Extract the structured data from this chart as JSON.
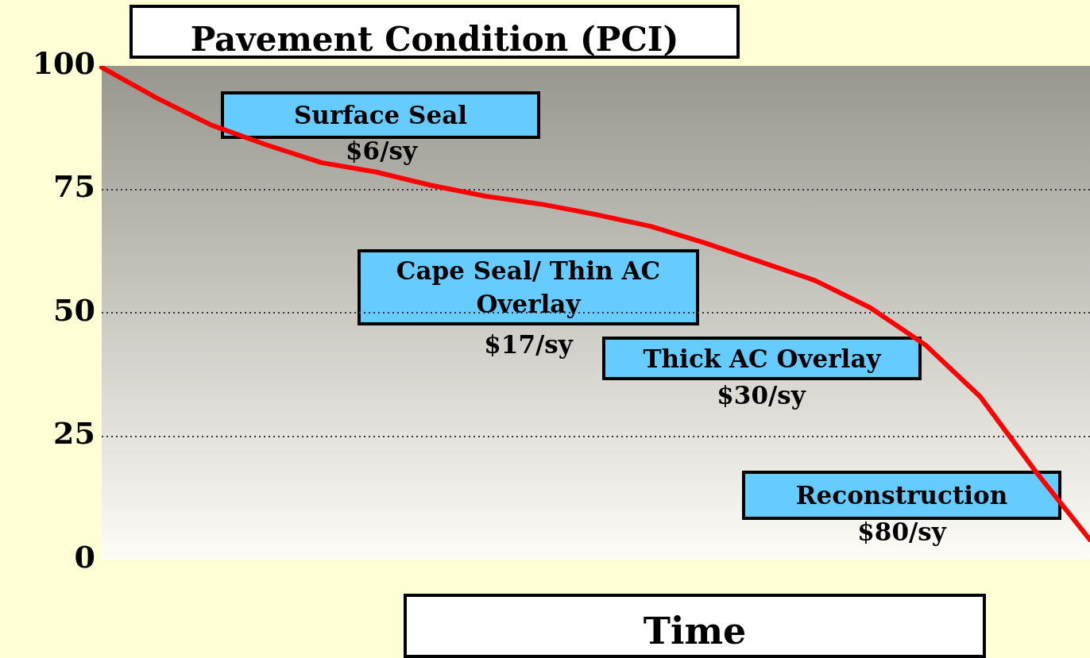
{
  "chart_data": {
    "type": "line",
    "title": "Pavement Condition (PCI)",
    "xlabel": "Time",
    "categories": [
      null,
      null,
      null,
      null,
      null,
      null,
      null,
      null,
      null,
      null,
      null,
      null,
      null,
      null,
      null,
      null,
      null,
      null,
      null
    ],
    "series": [
      {
        "color": "#ff0000",
        "values": [
          99.7,
          93.5,
          88,
          84,
          80.4,
          78.5,
          75.8,
          73.6,
          72,
          69.9,
          67.5,
          64.1,
          60.3,
          56.5,
          51,
          43.5,
          33,
          18,
          4
        ]
      }
    ],
    "ylim": [
      0,
      100
    ],
    "yticks": [
      0,
      25,
      50,
      75,
      100
    ],
    "grid": "y",
    "line_style": "solid",
    "marker": "none",
    "tick_labels": "y",
    "legend": false,
    "annotations": [
      "Surface Seal",
      "$6/sy",
      "Cape Seal/ Thin AC Overlay",
      "$17/sy",
      "Thick AC Overlay",
      "$30/sy",
      "Reconstruction",
      "$80/sy"
    ]
  }
}
